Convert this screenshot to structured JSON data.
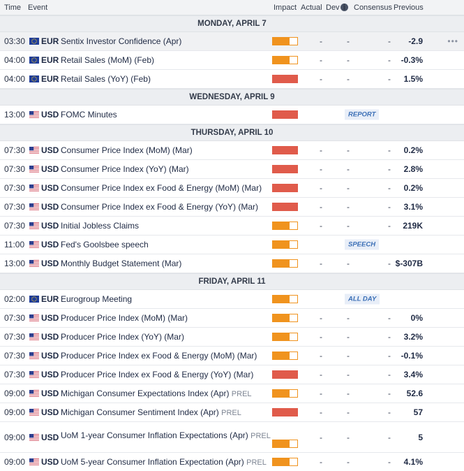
{
  "header": {
    "time": "Time",
    "event": "Event",
    "impact": "Impact",
    "actual": "Actual",
    "dev": "Dev",
    "consensus": "Consensus",
    "previous": "Previous"
  },
  "days": [
    {
      "label": "MONDAY, APRIL 7",
      "events": [
        {
          "time": "03:30",
          "currency": "EUR",
          "name": "Sentix Investor Confidence (Apr)",
          "prel": "",
          "impact": "medium",
          "actual": "-",
          "dev": "-",
          "consensus": "-",
          "previous": "-2.9",
          "tag": "",
          "highlight": true,
          "more": "•••"
        },
        {
          "time": "04:00",
          "currency": "EUR",
          "name": "Retail Sales (MoM) (Feb)",
          "prel": "",
          "impact": "medium",
          "actual": "-",
          "dev": "-",
          "consensus": "-",
          "previous": "-0.3%",
          "tag": ""
        },
        {
          "time": "04:00",
          "currency": "EUR",
          "name": "Retail Sales (YoY) (Feb)",
          "prel": "",
          "impact": "high",
          "actual": "-",
          "dev": "-",
          "consensus": "-",
          "previous": "1.5%",
          "tag": ""
        }
      ]
    },
    {
      "label": "WEDNESDAY, APRIL 9",
      "events": [
        {
          "time": "13:00",
          "currency": "USD",
          "name": "FOMC Minutes",
          "prel": "",
          "impact": "high",
          "tag": "REPORT"
        }
      ]
    },
    {
      "label": "THURSDAY, APRIL 10",
      "events": [
        {
          "time": "07:30",
          "currency": "USD",
          "name": "Consumer Price Index (MoM) (Mar)",
          "prel": "",
          "impact": "high",
          "actual": "-",
          "dev": "-",
          "consensus": "-",
          "previous": "0.2%",
          "tag": ""
        },
        {
          "time": "07:30",
          "currency": "USD",
          "name": "Consumer Price Index (YoY) (Mar)",
          "prel": "",
          "impact": "high",
          "actual": "-",
          "dev": "-",
          "consensus": "-",
          "previous": "2.8%",
          "tag": ""
        },
        {
          "time": "07:30",
          "currency": "USD",
          "name": "Consumer Price Index ex Food & Energy (MoM) (Mar)",
          "prel": "",
          "impact": "high",
          "actual": "-",
          "dev": "-",
          "consensus": "-",
          "previous": "0.2%",
          "tag": ""
        },
        {
          "time": "07:30",
          "currency": "USD",
          "name": "Consumer Price Index ex Food & Energy (YoY) (Mar)",
          "prel": "",
          "impact": "high",
          "actual": "-",
          "dev": "-",
          "consensus": "-",
          "previous": "3.1%",
          "tag": ""
        },
        {
          "time": "07:30",
          "currency": "USD",
          "name": "Initial Jobless Claims",
          "prel": "",
          "impact": "medium",
          "actual": "-",
          "dev": "-",
          "consensus": "-",
          "previous": "219K",
          "tag": ""
        },
        {
          "time": "11:00",
          "currency": "USD",
          "name": "Fed's Goolsbee speech",
          "prel": "",
          "impact": "medium",
          "tag": "SPEECH"
        },
        {
          "time": "13:00",
          "currency": "USD",
          "name": "Monthly Budget Statement (Mar)",
          "prel": "",
          "impact": "medium",
          "actual": "-",
          "dev": "-",
          "consensus": "-",
          "previous": "$-307B",
          "tag": ""
        }
      ]
    },
    {
      "label": "FRIDAY, APRIL 11",
      "events": [
        {
          "time": "02:00",
          "currency": "EUR",
          "name": "Eurogroup Meeting",
          "prel": "",
          "impact": "medium",
          "tag": "ALL DAY"
        },
        {
          "time": "07:30",
          "currency": "USD",
          "name": "Producer Price Index (MoM) (Mar)",
          "prel": "",
          "impact": "medium",
          "actual": "-",
          "dev": "-",
          "consensus": "-",
          "previous": "0%",
          "tag": ""
        },
        {
          "time": "07:30",
          "currency": "USD",
          "name": "Producer Price Index (YoY) (Mar)",
          "prel": "",
          "impact": "medium",
          "actual": "-",
          "dev": "-",
          "consensus": "-",
          "previous": "3.2%",
          "tag": ""
        },
        {
          "time": "07:30",
          "currency": "USD",
          "name": "Producer Price Index ex Food & Energy (MoM) (Mar)",
          "prel": "",
          "impact": "medium",
          "actual": "-",
          "dev": "-",
          "consensus": "-",
          "previous": "-0.1%",
          "tag": ""
        },
        {
          "time": "07:30",
          "currency": "USD",
          "name": "Producer Price Index ex Food & Energy (YoY) (Mar)",
          "prel": "",
          "impact": "high",
          "actual": "-",
          "dev": "-",
          "consensus": "-",
          "previous": "3.4%",
          "tag": ""
        },
        {
          "time": "09:00",
          "currency": "USD",
          "name": "Michigan Consumer Expectations Index (Apr)",
          "prel": "PREL",
          "impact": "medium",
          "actual": "-",
          "dev": "-",
          "consensus": "-",
          "previous": "52.6",
          "tag": ""
        },
        {
          "time": "09:00",
          "currency": "USD",
          "name": "Michigan Consumer Sentiment Index (Apr)",
          "prel": "PREL",
          "impact": "high",
          "actual": "-",
          "dev": "-",
          "consensus": "-",
          "previous": "57",
          "tag": ""
        },
        {
          "time": "09:00",
          "currency": "USD",
          "name": "UoM 1-year Consumer Inflation Expectations (Apr)",
          "prel": "PREL",
          "impact": "medium",
          "actual": "-",
          "dev": "-",
          "consensus": "-",
          "previous": "5",
          "tag": "",
          "tall": true
        },
        {
          "time": "09:00",
          "currency": "USD",
          "name": "UoM 5-year Consumer Inflation Expectation (Apr)",
          "prel": "PREL",
          "impact": "medium",
          "actual": "-",
          "dev": "-",
          "consensus": "-",
          "previous": "4.1%",
          "tag": ""
        }
      ]
    }
  ],
  "colors": {
    "impact_medium": "#f0931e",
    "impact_high": "#e05b4b",
    "tag_text": "#3b6fb6"
  },
  "icons": {
    "eur": "eu-flag-icon",
    "usd": "us-flag-icon",
    "info": "info-icon",
    "more": "more-dots-icon"
  }
}
